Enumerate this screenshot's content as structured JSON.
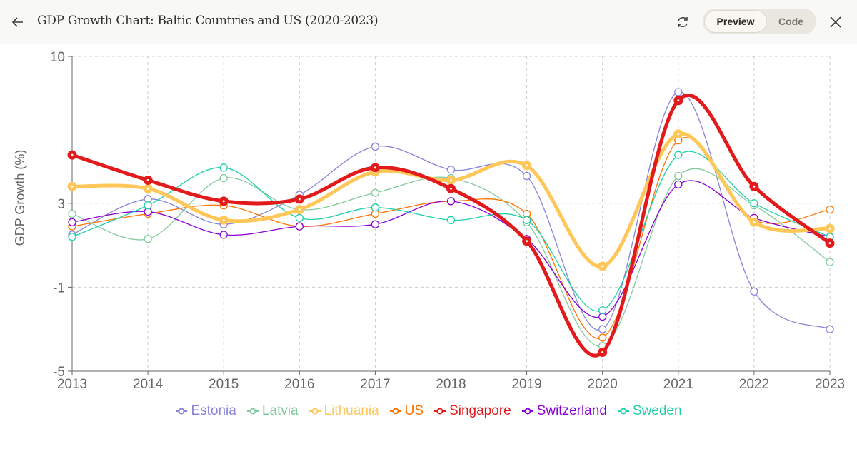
{
  "header": {
    "title": "GDP Growth Chart: Baltic Countries and US (2020-2023)",
    "back_icon": "arrow-left-icon",
    "refresh_icon": "refresh-icon",
    "close_icon": "close-icon",
    "toggle": {
      "preview_label": "Preview",
      "code_label": "Code",
      "selected": "Preview"
    }
  },
  "chart_data": {
    "type": "line",
    "title": "",
    "xlabel": "",
    "ylabel": "GDP Growth (%)",
    "x": [
      2013,
      2014,
      2015,
      2016,
      2017,
      2018,
      2019,
      2020,
      2021,
      2022,
      2023
    ],
    "ylim": [
      -5,
      10
    ],
    "yticks": [
      -5,
      -1,
      3,
      10
    ],
    "grid": true,
    "legend": "bottom",
    "series": [
      {
        "name": "Estonia",
        "color": "#8884d8",
        "emphasis": false,
        "values": [
          1.5,
          3.2,
          2.0,
          3.4,
          5.7,
          4.6,
          4.3,
          -3.0,
          8.3,
          -1.2,
          -3.0
        ]
      },
      {
        "name": "Latvia",
        "color": "#82ca9d",
        "emphasis": false,
        "values": [
          2.5,
          1.3,
          4.2,
          2.7,
          3.5,
          4.2,
          2.1,
          -3.8,
          4.3,
          2.9,
          0.2
        ]
      },
      {
        "name": "Lithuania",
        "color": "#ffc658",
        "emphasis": true,
        "values": [
          3.8,
          3.7,
          2.2,
          2.7,
          4.5,
          4.1,
          4.8,
          0.0,
          6.3,
          2.1,
          1.8
        ]
      },
      {
        "name": "US",
        "color": "#ff7300",
        "emphasis": false,
        "values": [
          1.9,
          2.5,
          2.9,
          1.9,
          2.5,
          3.1,
          2.5,
          -3.4,
          6.0,
          2.2,
          2.7
        ]
      },
      {
        "name": "Singapore",
        "color": "#e31a1c",
        "emphasis": true,
        "values": [
          5.3,
          4.1,
          3.1,
          3.2,
          4.7,
          3.7,
          1.2,
          -4.1,
          7.9,
          3.8,
          1.1
        ]
      },
      {
        "name": "Switzerland",
        "color": "#8a00d4",
        "emphasis": false,
        "values": [
          2.1,
          2.6,
          1.5,
          1.9,
          2.0,
          3.1,
          1.3,
          -2.4,
          3.9,
          2.3,
          1.4
        ]
      },
      {
        "name": "Sweden",
        "color": "#1fd1a8",
        "emphasis": false,
        "values": [
          1.4,
          2.9,
          4.7,
          2.3,
          2.8,
          2.2,
          2.2,
          -2.1,
          5.3,
          3.0,
          1.4
        ]
      }
    ]
  }
}
